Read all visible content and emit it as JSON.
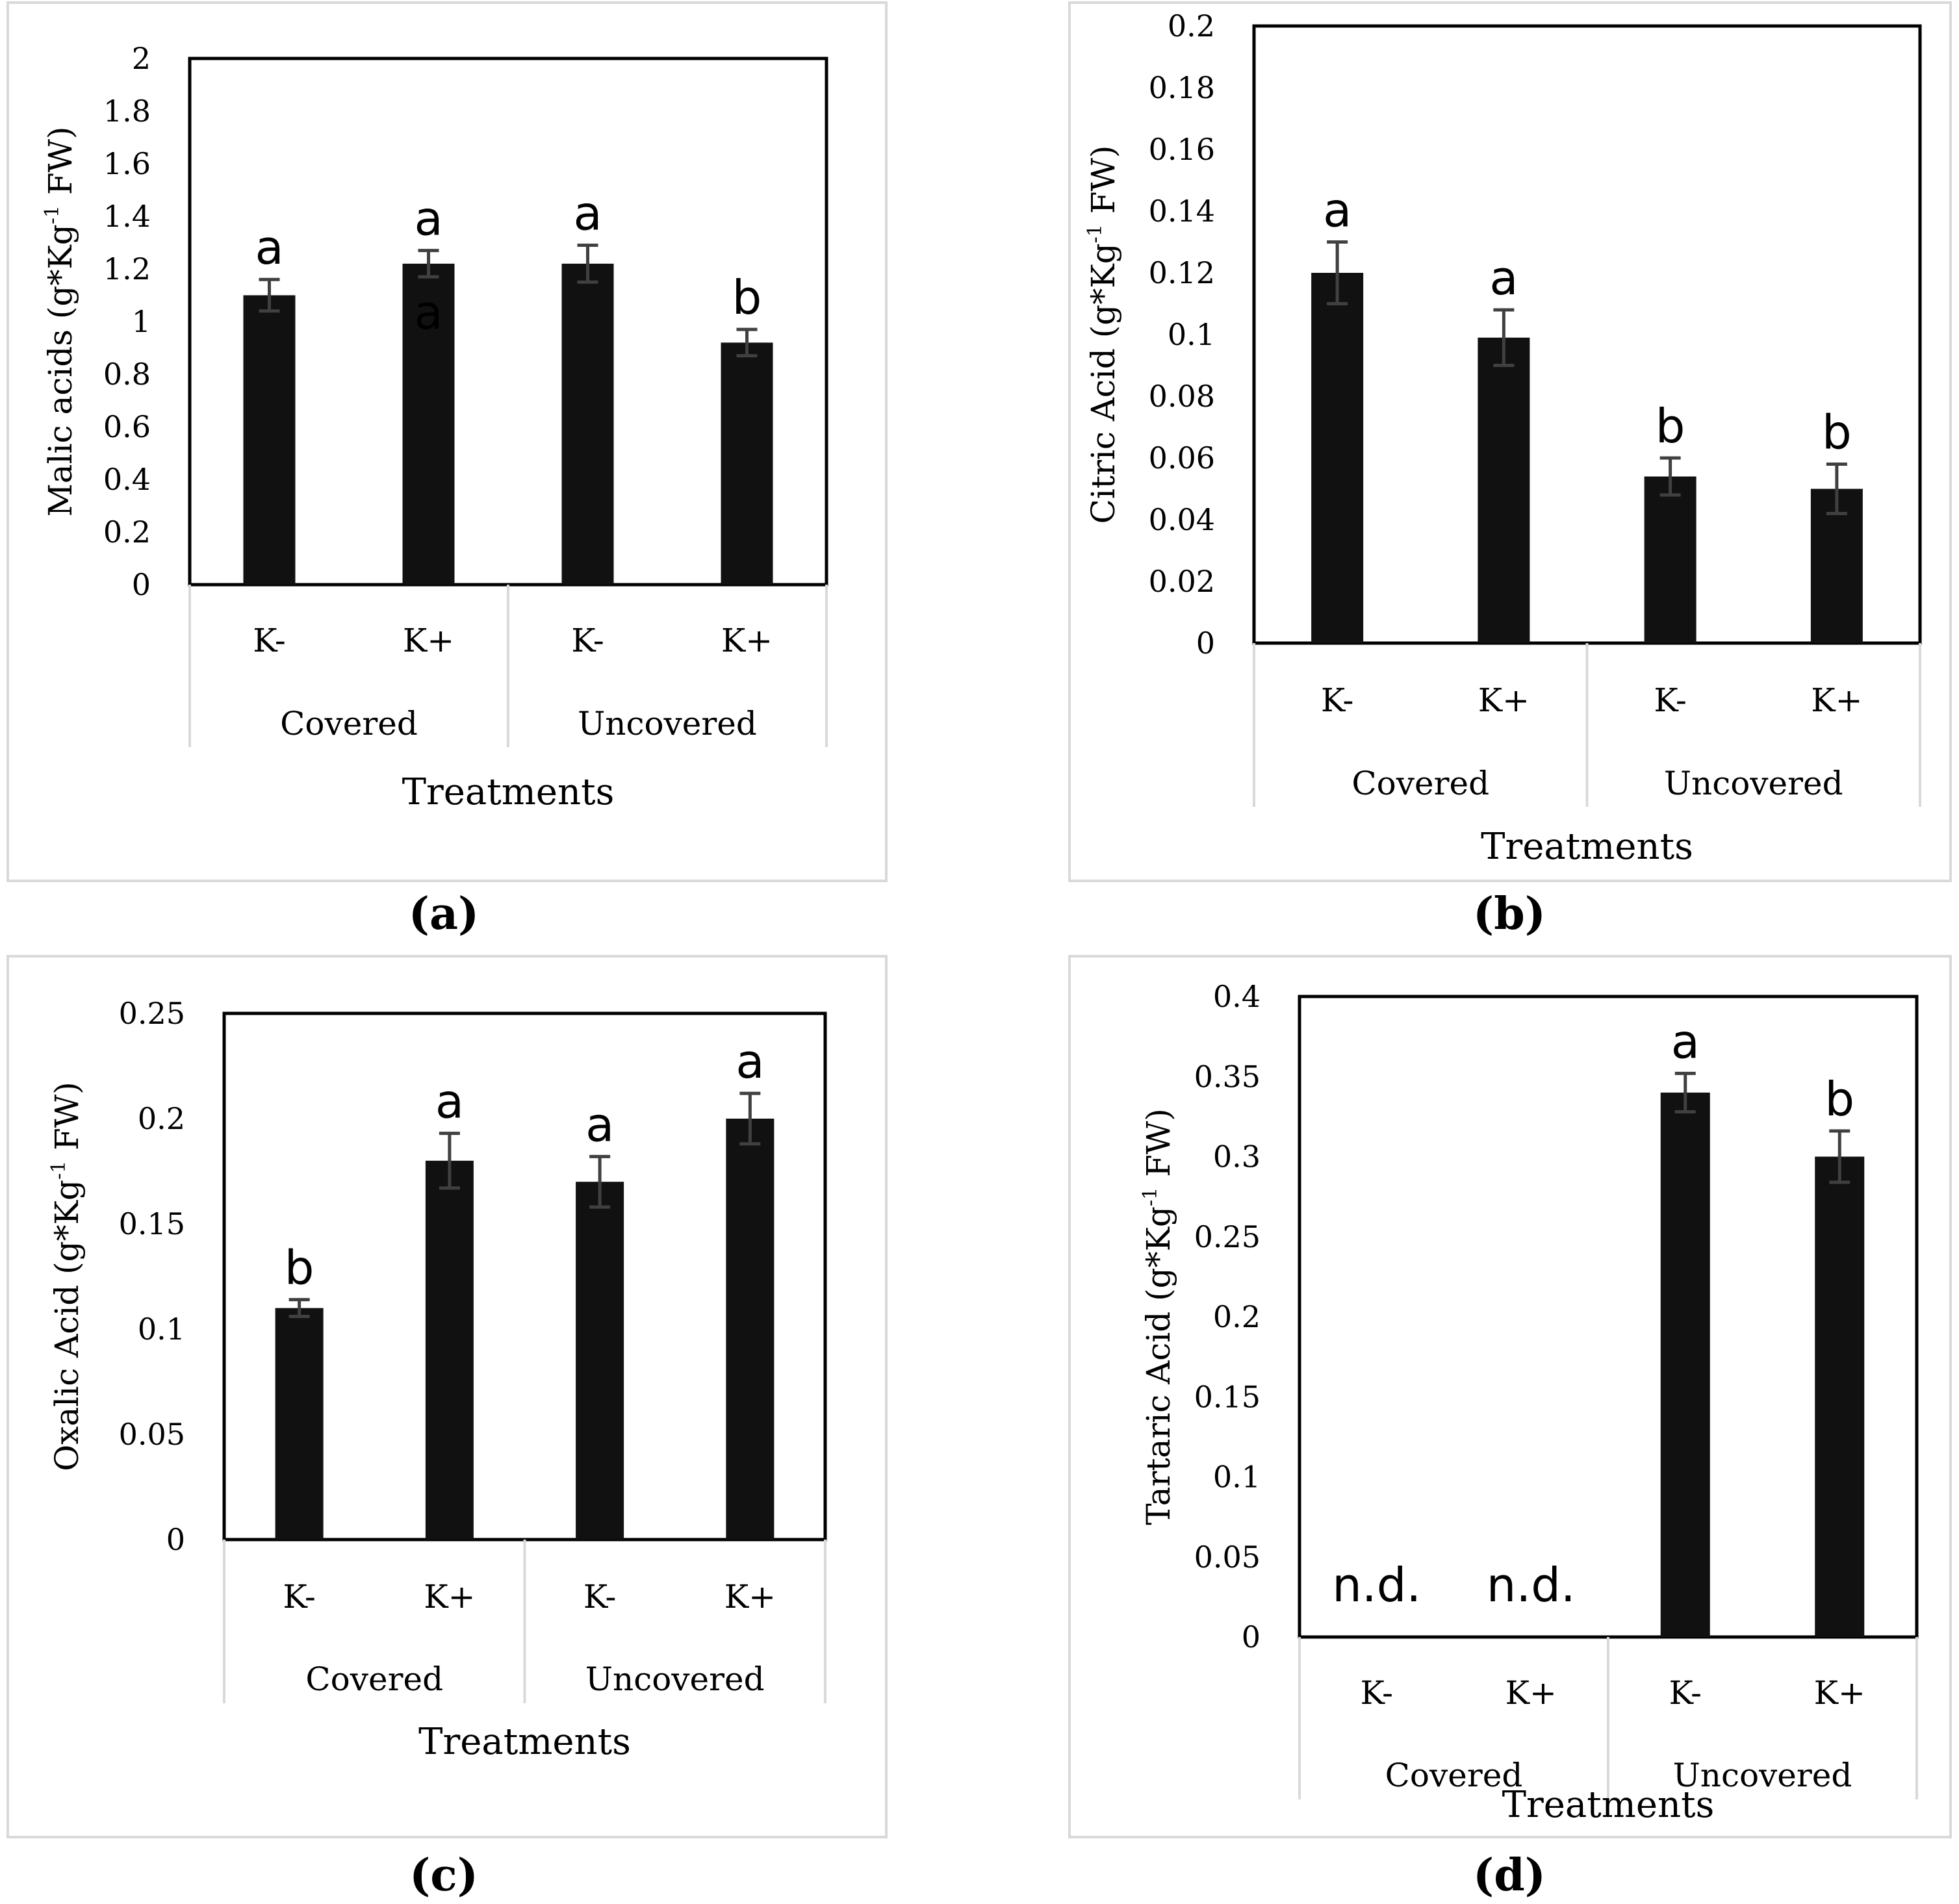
{
  "chart_data": [
    {
      "type": "bar",
      "panel": "a",
      "caption": "(a)",
      "ylabel": "Malic acids (g*Kg",
      "ylabel_sup": "-1",
      "ylabel_suffix": " FW)",
      "xlabel": "Treatments",
      "ylim": [
        0,
        2
      ],
      "ytick_labels": [
        "0",
        "0.2",
        "0.4",
        "0.6",
        "0.8",
        "1",
        "1.2",
        "1.4",
        "1.6",
        "1.8",
        "2"
      ],
      "groups": [
        "Covered",
        "Uncovered"
      ],
      "categories": [
        "K-",
        "K+",
        "K-",
        "K+"
      ],
      "values": [
        1.1,
        1.22,
        1.22,
        0.92
      ],
      "errors": [
        0.06,
        0.05,
        0.07,
        0.05
      ],
      "significance": [
        "a",
        "a",
        "a",
        "b"
      ],
      "extra_annotation": "a",
      "not_detected_label": ""
    },
    {
      "type": "bar",
      "panel": "b",
      "caption": "(b)",
      "ylabel": "Citric Acid (g*Kg",
      "ylabel_sup": "-1",
      "ylabel_suffix": " FW)",
      "xlabel": "Treatments",
      "ylim": [
        0,
        0.2
      ],
      "ytick_labels": [
        "0",
        "0.02",
        "0.04",
        "0.06",
        "0.08",
        "0.1",
        "0.12",
        "0.14",
        "0.16",
        "0.18",
        "0.2"
      ],
      "groups": [
        "Covered",
        "Uncovered"
      ],
      "categories": [
        "K-",
        "K+",
        "K-",
        "K+"
      ],
      "values": [
        0.12,
        0.099,
        0.054,
        0.05
      ],
      "errors": [
        0.01,
        0.009,
        0.006,
        0.008
      ],
      "significance": [
        "a",
        "a",
        "b",
        "b"
      ],
      "extra_annotation": "",
      "not_detected_label": ""
    },
    {
      "type": "bar",
      "panel": "c",
      "caption": "(c)",
      "ylabel": "Oxalic Acid (g*Kg",
      "ylabel_sup": "-1",
      "ylabel_suffix": " FW)",
      "xlabel": "Treatments",
      "ylim": [
        0,
        0.25
      ],
      "ytick_labels": [
        "0",
        "0.05",
        "0.1",
        "0.15",
        "0.2",
        "0.25"
      ],
      "groups": [
        "Covered",
        "Uncovered"
      ],
      "categories": [
        "K-",
        "K+",
        "K-",
        "K+"
      ],
      "values": [
        0.11,
        0.18,
        0.17,
        0.2
      ],
      "errors": [
        0.004,
        0.013,
        0.012,
        0.012
      ],
      "significance": [
        "b",
        "a",
        "a",
        "a"
      ],
      "extra_annotation": "",
      "not_detected_label": ""
    },
    {
      "type": "bar",
      "panel": "d",
      "caption": "(d)",
      "ylabel": "Tartaric Acid (g*Kg",
      "ylabel_sup": "-1",
      "ylabel_suffix": " FW)",
      "xlabel": "Treatments",
      "ylim": [
        0,
        0.4
      ],
      "ytick_labels": [
        "0",
        "0.05",
        "0.1",
        "0.15",
        "0.2",
        "0.25",
        "0.3",
        "0.35",
        "0.4"
      ],
      "groups": [
        "Covered",
        "Uncovered"
      ],
      "categories": [
        "K-",
        "K+",
        "K-",
        "K+"
      ],
      "values": [
        null,
        null,
        0.34,
        0.3
      ],
      "errors": [
        null,
        null,
        0.012,
        0.016
      ],
      "significance": [
        "",
        "",
        "a",
        "b"
      ],
      "extra_annotation": "",
      "not_detected_label": "n.d."
    }
  ]
}
